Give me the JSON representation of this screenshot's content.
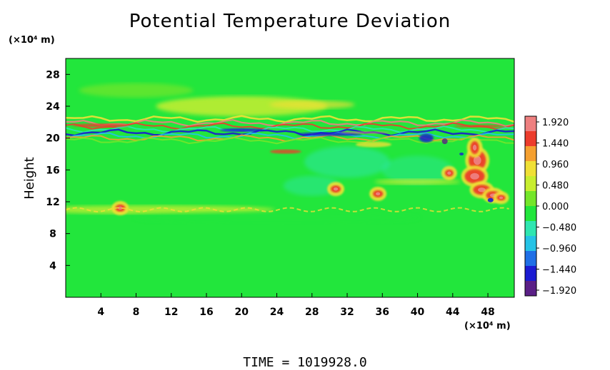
{
  "chart_data": {
    "type": "heatmap",
    "title": "Potential Temperature Deviation",
    "xlabel": "",
    "ylabel": "Height",
    "x_unit": "(×10⁴ m)",
    "y_unit": "(×10⁴ m)",
    "xlim": [
      0,
      51
    ],
    "ylim": [
      0,
      30
    ],
    "x_ticks": [
      4,
      8,
      12,
      16,
      20,
      24,
      28,
      32,
      36,
      40,
      44,
      48
    ],
    "y_ticks": [
      4,
      8,
      12,
      16,
      20,
      24,
      28
    ],
    "colorbar": {
      "min": -1.92,
      "max": 1.92,
      "tick_labels": [
        "1.920",
        "1.440",
        "0.960",
        "0.480",
        "0.000",
        "−0.480",
        "−0.960",
        "−1.440",
        "−1.920"
      ],
      "colors": [
        "#5a1f86",
        "#1b1bd2",
        "#1f6fe6",
        "#25c3e6",
        "#2fe6b0",
        "#22e63c",
        "#74e62a",
        "#c8ee30",
        "#f0e036",
        "#f5a030",
        "#ec3c2c",
        "#ee8080"
      ]
    },
    "footer": "TIME =  1019928.0",
    "background_value_color": "#22e63c",
    "features": [
      {
        "name": "upper band",
        "y_range": [
          19.5,
          22.5
        ],
        "pattern": "alternating warm/cold layers"
      },
      {
        "name": "warm patch near 24",
        "y": 24,
        "sign": "positive"
      },
      {
        "name": "lower band",
        "y": 11,
        "sign": "weak positive"
      },
      {
        "name": "convective cells",
        "x_range": [
          42,
          51
        ],
        "y_range": [
          11,
          19
        ],
        "sign": "strong positive"
      }
    ]
  }
}
